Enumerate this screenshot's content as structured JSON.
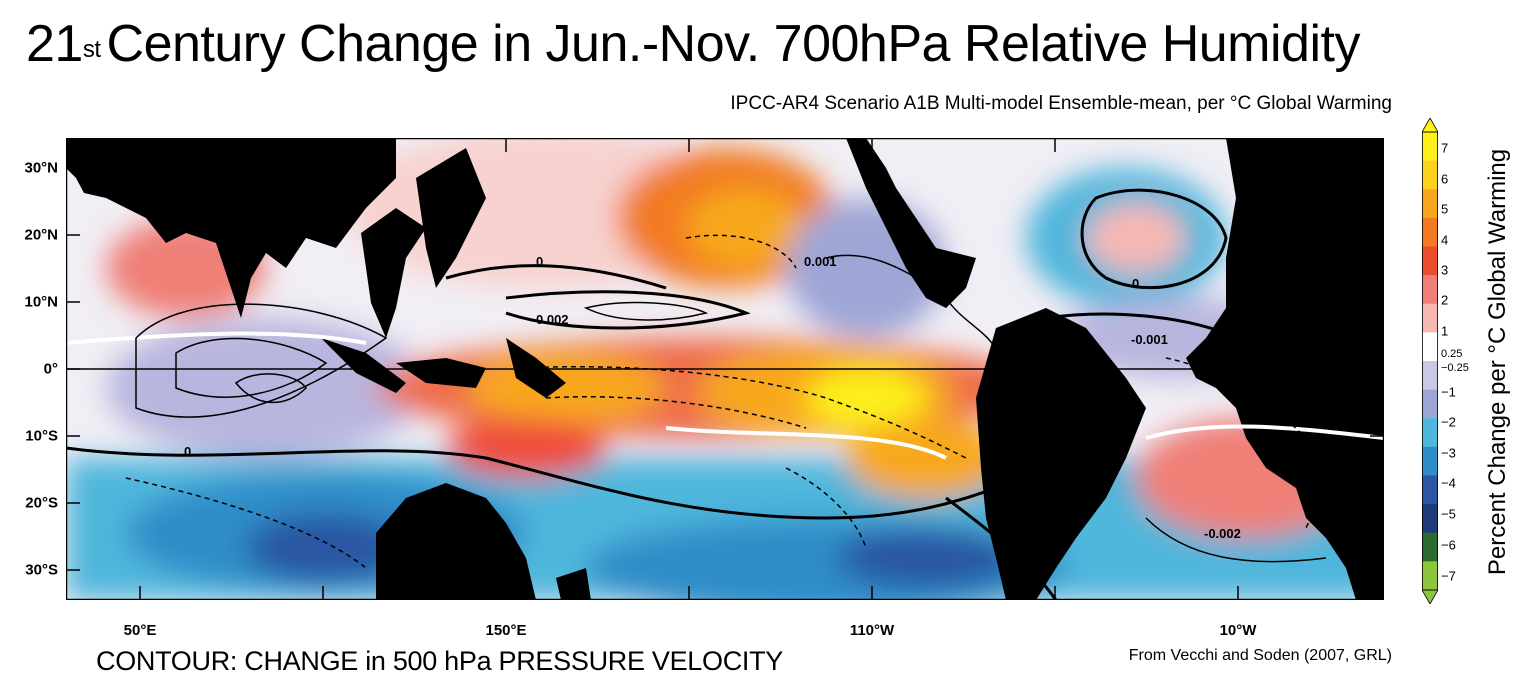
{
  "title": {
    "main": "Century Change in Jun.-Nov. 700hPa Relative Humidity",
    "number": "21",
    "superscript": "st"
  },
  "subtitle": "IPCC-AR4 Scenario A1B Multi-model Ensemble-mean, per °C Global Warming",
  "map": {
    "lat_labels": [
      "30°N",
      "20°N",
      "10°N",
      "0°",
      "10°S",
      "20°S",
      "30°S"
    ],
    "lon_labels": [
      "50°E",
      "150°E",
      "110°W",
      "10°W"
    ],
    "contour_labels": [
      "0",
      "0.001",
      "0.002",
      "-0.001",
      "-0.002"
    ],
    "colors": {
      "land": "#000000",
      "strong_positive": "#fbe21e",
      "positive": "#ee3d2c",
      "weak_positive": "#f6c6c0",
      "weak_negative": "#c6c6e4",
      "negative": "#3b9fd1",
      "strong_negative": "#2a4c9e"
    }
  },
  "contour_caption": "CONTOUR: CHANGE in 500 hPa PRESSURE VELOCITY",
  "credit": "From Vecchi and Soden (2007, GRL)",
  "colorbar": {
    "title": "Percent Change per °C Global Warming",
    "labels": [
      "7",
      "6",
      "5",
      "4",
      "3",
      "2",
      "1",
      "0.25",
      "−0.25",
      "−1",
      "−2",
      "−3",
      "−4",
      "−5",
      "−6",
      "−7"
    ],
    "colors": [
      "#fdf01b",
      "#fbd31c",
      "#f8a81e",
      "#f27a22",
      "#ec4d2a",
      "#ef7f77",
      "#f7b8b4",
      "#ffffff",
      "#c9c9e6",
      "#9ea6d6",
      "#4fb6dc",
      "#2f8dc8",
      "#2a56a3",
      "#1f3c7a",
      "#2b6b2e",
      "#8cc63f"
    ]
  }
}
